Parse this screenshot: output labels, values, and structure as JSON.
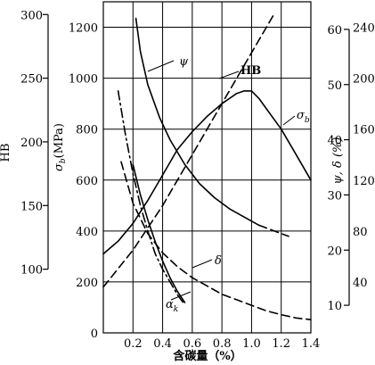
{
  "chart_data": {
    "type": "line",
    "xlabel": "含碳量（%）",
    "x_ticks": [
      "0.2",
      "0.4",
      "0.6",
      "0.8",
      "1.0",
      "1.2",
      "1.4"
    ],
    "xlim": [
      0,
      1.4
    ],
    "grid": true,
    "axes": {
      "sigma": {
        "label_main": "σ",
        "label_sub": "b",
        "label_unit": "(MPa)",
        "ticks": [
          "0",
          "200",
          "400",
          "600",
          "800",
          "1000",
          "1200"
        ],
        "range": [
          0,
          1300
        ]
      },
      "hb": {
        "label": "HB",
        "ticks": [
          "100",
          "150",
          "200",
          "250",
          "300"
        ],
        "range": [
          50,
          310
        ]
      },
      "psi_delta": {
        "label": "ψ, δ (%)",
        "ticks": [
          "10",
          "20",
          "30",
          "40",
          "50",
          "60"
        ],
        "range": [
          5,
          65
        ]
      },
      "ak": {
        "ticks": [
          "40",
          "80",
          "120",
          "160",
          "200",
          "240"
        ],
        "range": [
          0,
          260
        ]
      }
    },
    "series": [
      {
        "name": "σb",
        "label_main": "σ",
        "label_sub": "b",
        "axis": "sigma",
        "style": "solid",
        "x": [
          0.0,
          0.1,
          0.2,
          0.3,
          0.4,
          0.5,
          0.6,
          0.7,
          0.8,
          0.9,
          0.95,
          1.0,
          1.05,
          1.1,
          1.2,
          1.3,
          1.4
        ],
        "y": [
          310,
          360,
          430,
          520,
          620,
          720,
          790,
          850,
          900,
          940,
          950,
          950,
          920,
          880,
          800,
          700,
          600
        ]
      },
      {
        "name": "HB",
        "axis": "hb",
        "style": "dashed",
        "x": [
          0.0,
          0.2,
          0.4,
          0.6,
          0.8,
          1.0,
          1.15
        ],
        "y": [
          86,
          115,
          150,
          190,
          230,
          270,
          300
        ]
      },
      {
        "name": "ψ",
        "axis": "psi_delta",
        "style": "solid",
        "x": [
          0.22,
          0.25,
          0.3,
          0.38,
          0.45,
          0.55,
          0.65,
          0.75,
          0.85,
          0.95,
          1.05
        ],
        "y": [
          62,
          56,
          50,
          44,
          40,
          35.5,
          32,
          29.5,
          27.5,
          26,
          24.5
        ]
      },
      {
        "name": "ψ-cont",
        "axis": "psi_delta",
        "style": "dashed",
        "x": [
          1.05,
          1.15,
          1.25
        ],
        "y": [
          24.5,
          23.5,
          22.5
        ]
      },
      {
        "name": "δ",
        "axis": "psi_delta",
        "style": "dashed",
        "x": [
          0.12,
          0.2,
          0.3,
          0.4,
          0.5,
          0.6,
          0.7,
          0.8,
          0.9,
          1.0,
          1.1,
          1.2,
          1.3,
          1.4
        ],
        "y": [
          36,
          28.5,
          23,
          19.5,
          17,
          15,
          13.5,
          12,
          11,
          10,
          9,
          8.3,
          7.7,
          7.4
        ]
      },
      {
        "name": "ak",
        "label_main": "α",
        "label_sub": "k",
        "axis": "ak",
        "style": "dashdot",
        "x": [
          0.1,
          0.15,
          0.2,
          0.25,
          0.3,
          0.35,
          0.4,
          0.45,
          0.5,
          0.55
        ],
        "y": [
          190,
          155,
          125,
          100,
          80,
          62,
          50,
          40,
          30,
          22
        ]
      },
      {
        "name": "ψ-low",
        "axis": "psi_delta",
        "style": "solid",
        "x": [
          0.2,
          0.25,
          0.3,
          0.35,
          0.4,
          0.45,
          0.5,
          0.55
        ],
        "y": [
          35.5,
          30,
          25.5,
          21.5,
          18,
          15,
          12.5,
          10.5
        ]
      }
    ]
  }
}
